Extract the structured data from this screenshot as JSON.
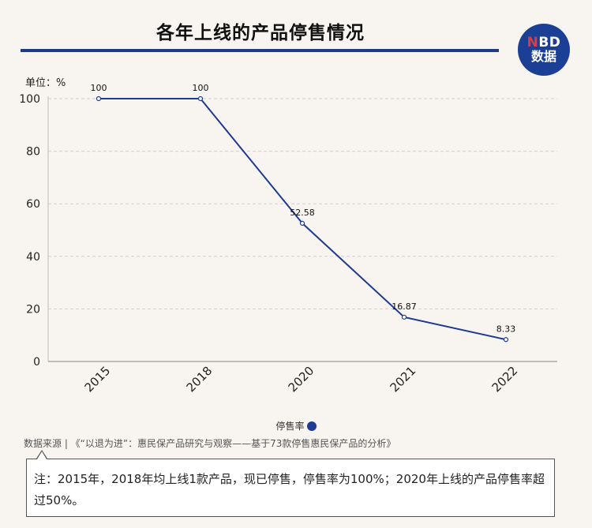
{
  "header": {
    "title": "各年上线的产品停售情况",
    "logo_line1_red": "N",
    "logo_line1_rest": "BD",
    "logo_line2": "数据"
  },
  "unit_label": "单位：%",
  "legend_label": "停售率",
  "source_text": "数据来源 | 《“以退为进”：惠民保产品研究与观察——基于73款停售惠民保产品的分析》",
  "note_text": "注：2015年，2018年均上线1款产品，现已停售，停售率为100%；2020年上线的产品停售率超过50%。",
  "colors": {
    "line": "#1f3a93",
    "rule": "#1e3a8a",
    "logo_bg": "#1b3f95"
  },
  "chart_data": {
    "type": "line",
    "categories": [
      "2015",
      "2018",
      "2020",
      "2021",
      "2022"
    ],
    "series": [
      {
        "name": "停售率",
        "values": [
          100,
          100,
          52.58,
          16.87,
          8.33
        ]
      }
    ],
    "data_labels": [
      "100",
      "100",
      "52.58",
      "16.87",
      "8.33"
    ],
    "ylim": [
      0,
      100
    ],
    "yticks": [
      0,
      20,
      40,
      60,
      80,
      100
    ],
    "grid": true,
    "legend_position": "bottom"
  }
}
